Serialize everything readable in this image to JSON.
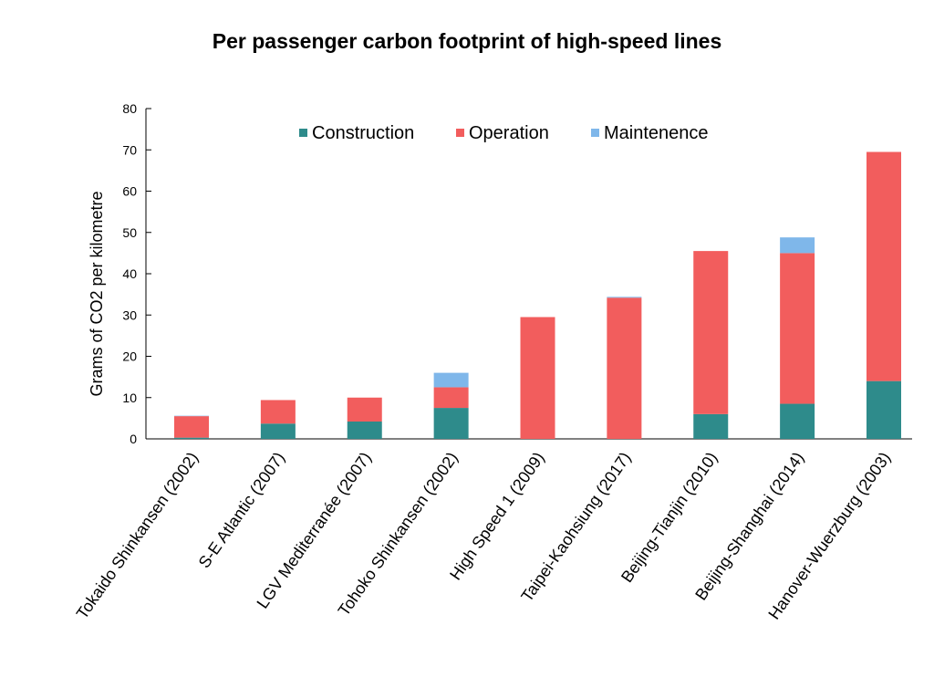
{
  "chart_data": {
    "type": "bar",
    "stacked": true,
    "title": "Per passenger carbon footprint of high-speed lines",
    "ylabel": "Grams of CO2 per kilometre",
    "xlabel": "",
    "ylim": [
      0,
      80
    ],
    "yticks": [
      0,
      10,
      20,
      30,
      40,
      50,
      60,
      70,
      80
    ],
    "grid": false,
    "legend_position": "top",
    "categories": [
      "Tokaido Shinkansen (2002)",
      "S-E Atlantic (2007)",
      "LGV Mediterranée (2007)",
      "Tohoko Shinkansen (2002)",
      "High Speed 1 (2009)",
      "Taipei-Kaohsiung (2017)",
      "Beijing-Tianjin (2010)",
      "Beijing-Shanghai (2014)",
      "Hanover-Wuerzburg (2003)"
    ],
    "series": [
      {
        "name": "Construction",
        "color": "#2e8b8b",
        "values": [
          0.3,
          3.7,
          4.2,
          7.5,
          0,
          0,
          6,
          8.5,
          14
        ]
      },
      {
        "name": "Operation",
        "color": "#f25d5d",
        "values": [
          5.2,
          5.7,
          5.8,
          5.0,
          29.5,
          34.2,
          39.5,
          36.5,
          55.5
        ]
      },
      {
        "name": "Maintenence",
        "color": "#7fb7ea",
        "values": [
          0.1,
          0,
          0,
          3.5,
          0,
          0.2,
          0,
          3.8,
          0
        ]
      }
    ]
  }
}
